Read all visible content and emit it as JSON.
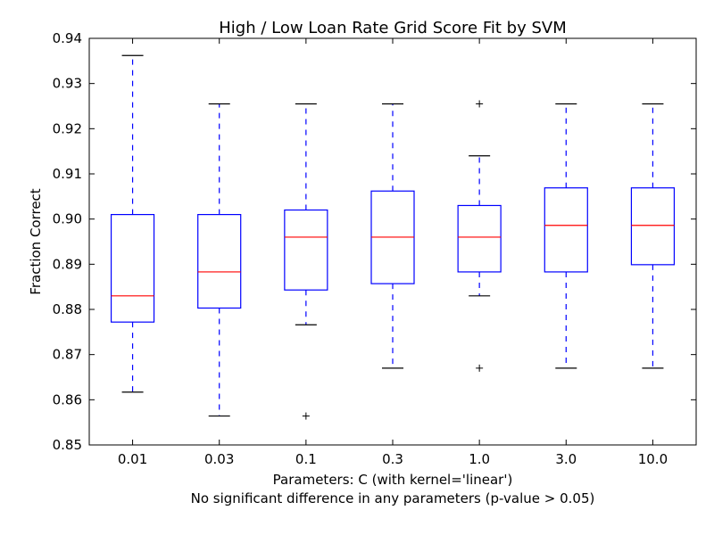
{
  "chart_data": {
    "type": "box",
    "title": "High / Low Loan Rate Grid Score Fit by SVM",
    "xlabel": "Parameters: C (with kernel='linear')",
    "xlabel_sub": "No significant difference in any parameters (p-value > 0.05)",
    "ylabel": "Fraction Correct",
    "ylim": [
      0.85,
      0.94
    ],
    "yticks": [
      "0.85",
      "0.86",
      "0.87",
      "0.88",
      "0.89",
      "0.90",
      "0.91",
      "0.92",
      "0.93",
      "0.94"
    ],
    "grid": false,
    "categories": [
      "0.01",
      "0.03",
      "0.1",
      "0.3",
      "1.0",
      "3.0",
      "10.0"
    ],
    "boxes": [
      {
        "whislo": 0.8617,
        "q1": 0.8772,
        "med": 0.883,
        "q3": 0.901,
        "whishi": 0.9362,
        "fliers": []
      },
      {
        "whislo": 0.8564,
        "q1": 0.8803,
        "med": 0.8883,
        "q3": 0.901,
        "whishi": 0.9255,
        "fliers": []
      },
      {
        "whislo": 0.8766,
        "q1": 0.8843,
        "med": 0.896,
        "q3": 0.902,
        "whishi": 0.9255,
        "fliers": [
          0.8564
        ]
      },
      {
        "whislo": 0.867,
        "q1": 0.8857,
        "med": 0.896,
        "q3": 0.9062,
        "whishi": 0.9255,
        "fliers": []
      },
      {
        "whislo": 0.883,
        "q1": 0.8883,
        "med": 0.896,
        "q3": 0.903,
        "whishi": 0.914,
        "fliers": [
          0.867,
          0.9255
        ]
      },
      {
        "whislo": 0.867,
        "q1": 0.8883,
        "med": 0.8986,
        "q3": 0.9069,
        "whishi": 0.9255,
        "fliers": []
      },
      {
        "whislo": 0.867,
        "q1": 0.8899,
        "med": 0.8986,
        "q3": 0.9069,
        "whishi": 0.9255,
        "fliers": []
      }
    ],
    "colors": {
      "box": "#0000ff",
      "median": "#ff0000",
      "whisker": "#0000ff",
      "cap": "#000000",
      "flier": "#000000"
    }
  }
}
